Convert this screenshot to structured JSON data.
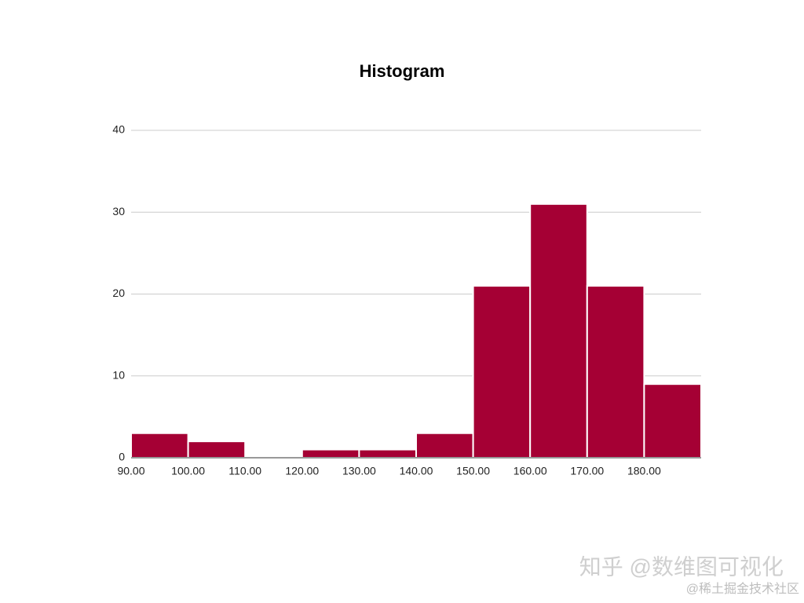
{
  "chart_data": {
    "type": "histogram",
    "title": "Histogram",
    "bins": [
      90,
      100,
      110,
      120,
      130,
      140,
      150,
      160,
      170,
      180,
      190
    ],
    "values": [
      3,
      2,
      0,
      1,
      1,
      3,
      21,
      31,
      21,
      9
    ],
    "color": "#a50034",
    "xlim": [
      90,
      190
    ],
    "xticks": [
      {
        "value": 90,
        "label": "90.00"
      },
      {
        "value": 100,
        "label": "100.00"
      },
      {
        "value": 110,
        "label": "110.00"
      },
      {
        "value": 120,
        "label": "120.00"
      },
      {
        "value": 130,
        "label": "130.00"
      },
      {
        "value": 140,
        "label": "140.00"
      },
      {
        "value": 150,
        "label": "150.00"
      },
      {
        "value": 160,
        "label": "160.00"
      },
      {
        "value": 170,
        "label": "170.00"
      },
      {
        "value": 180,
        "label": "180.00"
      }
    ],
    "ylim": [
      0,
      40
    ],
    "yticks": [
      0,
      10,
      20,
      30,
      40
    ],
    "grid": true,
    "annotations": [
      "知乎 @数维图可视化",
      "@稀土掘金技术社区"
    ]
  }
}
